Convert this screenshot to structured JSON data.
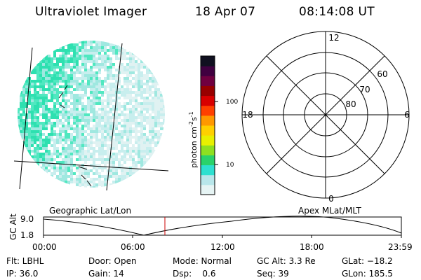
{
  "header": {
    "instrument": "Ultraviolet Imager",
    "date": "18 Apr 07",
    "time": "08:14:08 UT"
  },
  "colorbar": {
    "label": "photon cm",
    "label_sup1": "-2",
    "label_mid": "s",
    "label_sup2": "-1",
    "ticks": [
      "100",
      "10"
    ]
  },
  "polar": {
    "mlt_labels": {
      "top": "12",
      "left": "18",
      "right": "6",
      "bottom": "0"
    },
    "lat_labels": [
      "60",
      "70",
      "80"
    ]
  },
  "timeline": {
    "left_caption": "Geographic Lat/Lon",
    "right_caption": "Apex MLat/MLT",
    "axis_label": "GC Alt",
    "y_ticks": [
      "9.0",
      "1.8"
    ],
    "x_ticks": [
      "00:00",
      "06:00",
      "12:00",
      "18:00",
      "23:59"
    ]
  },
  "info": [
    [
      "Flt: LBHL",
      "Door: Open",
      "Mode: Normal",
      "GC Alt: 3.3 Re",
      "GLat: −18.2"
    ],
    [
      "IP: 36.0",
      "Gain: 14",
      "Dsp:    0.6",
      "Seq: 39",
      "GLon: 185.5"
    ]
  ],
  "colors": {
    "colorbar_stops": [
      "#e6f4f4",
      "#b8e6ea",
      "#2ee0d0",
      "#2ad26a",
      "#8ee020",
      "#e8f000",
      "#ffd000",
      "#ff9800",
      "#ff4000",
      "#d80000",
      "#980000",
      "#700040",
      "#400040",
      "#101020"
    ],
    "time_marker": "#cc0000",
    "pixel_palette": [
      "#2ee0b0",
      "#50e8c0",
      "#9fe8e0",
      "#c8eeee",
      "#e0f2f2"
    ]
  }
}
